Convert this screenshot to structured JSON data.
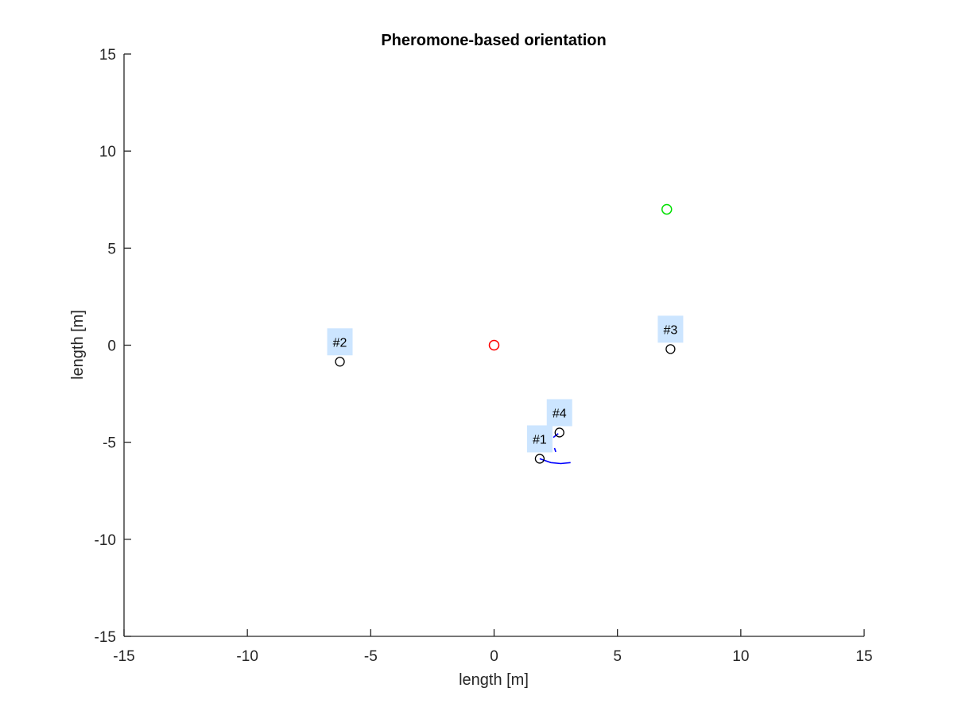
{
  "chart_data": {
    "type": "scatter",
    "title": "Pheromone-based orientation",
    "xlabel": "length [m]",
    "ylabel": "length [m]",
    "xlim": [
      -15,
      15
    ],
    "ylim": [
      -15,
      15
    ],
    "xticks": [
      -15,
      -10,
      -5,
      0,
      5,
      10,
      15
    ],
    "yticks": [
      -15,
      -10,
      -5,
      0,
      5,
      10,
      15
    ],
    "xtick_labels": [
      "-15",
      "-10",
      "-5",
      "0",
      "5",
      "10",
      "15"
    ],
    "ytick_labels": [
      "-15",
      "-10",
      "-5",
      "0",
      "5",
      "10",
      "15"
    ],
    "grid": false,
    "markers": {
      "start": {
        "x": 0,
        "y": 0,
        "color": "#ff0000"
      },
      "goal": {
        "x": 7,
        "y": 7,
        "color": "#00e000"
      }
    },
    "agents": [
      {
        "label": "#1",
        "x": 1.85,
        "y": -5.85,
        "color": "#000000"
      },
      {
        "label": "#2",
        "x": -6.25,
        "y": -0.85,
        "color": "#000000"
      },
      {
        "label": "#3",
        "x": 7.15,
        "y": -0.2,
        "color": "#000000"
      },
      {
        "label": "#4",
        "x": 2.65,
        "y": -4.5,
        "color": "#000000"
      }
    ],
    "trails": [
      {
        "color": "#0000ff",
        "points": [
          [
            1.85,
            -5.85
          ],
          [
            2.3,
            -6.05
          ],
          [
            2.7,
            -6.1
          ],
          [
            3.1,
            -6.05
          ]
        ]
      },
      {
        "color": "#0000ff",
        "points": [
          [
            6.65,
            0.95
          ],
          [
            6.8,
            0.85
          ]
        ]
      },
      {
        "color": "#0000ff",
        "points": [
          [
            2.4,
            -4.75
          ],
          [
            2.6,
            -4.55
          ]
        ]
      },
      {
        "color": "#0000ff",
        "points": [
          [
            2.45,
            -5.3
          ],
          [
            2.5,
            -5.5
          ]
        ]
      }
    ],
    "label_box_color": "#cce5ff",
    "axis_color": "#262626"
  }
}
